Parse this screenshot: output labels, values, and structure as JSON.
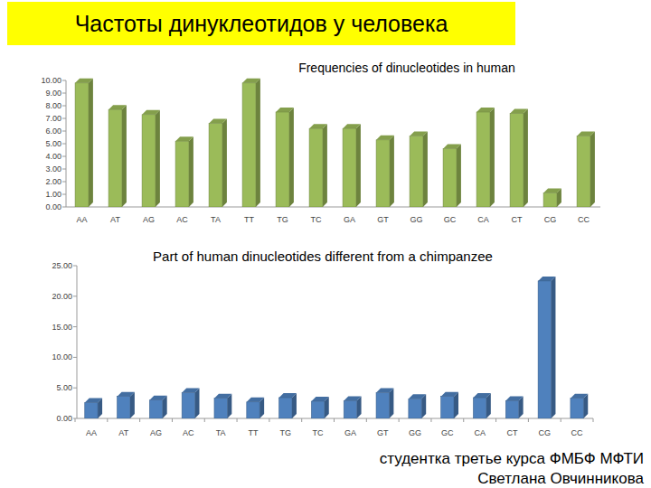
{
  "slide": {
    "title": "Частоты динуклеотидов у человека",
    "footer": [
      "студентка третье курса ФМБФ МФТИ",
      "Светлана Овчинникова"
    ]
  },
  "chart_data": [
    {
      "type": "bar",
      "title": "Frequencies of dinucleotides in human",
      "categories": [
        "AA",
        "AT",
        "AG",
        "AC",
        "TA",
        "TT",
        "TG",
        "TC",
        "GA",
        "GT",
        "GG",
        "GC",
        "CA",
        "CT",
        "CG",
        "CC"
      ],
      "values": [
        9.8,
        7.7,
        7.3,
        5.2,
        6.6,
        9.8,
        7.5,
        6.2,
        6.2,
        5.3,
        5.6,
        4.6,
        7.5,
        7.4,
        1.1,
        5.6
      ],
      "color": "#9bbb59",
      "ylim": [
        0,
        10
      ],
      "yticks": [
        {
          "value": 0,
          "label": "0.00"
        },
        {
          "value": 1,
          "label": "1.00"
        },
        {
          "value": 2,
          "label": "2.00"
        },
        {
          "value": 3,
          "label": "3.00"
        },
        {
          "value": 4,
          "label": "4.00"
        },
        {
          "value": 5,
          "label": "5.00"
        },
        {
          "value": 6,
          "label": "6.00"
        },
        {
          "value": 7,
          "label": "7.00"
        },
        {
          "value": 8,
          "label": "8.00"
        },
        {
          "value": 9,
          "label": "9.00"
        },
        {
          "value": 10,
          "label": "10.00"
        }
      ],
      "grid": false
    },
    {
      "type": "bar",
      "title": "Part of human dinucleotides different from a chimpanzee",
      "categories": [
        "AA",
        "AT",
        "AG",
        "AC",
        "TA",
        "TT",
        "TG",
        "TC",
        "GA",
        "GT",
        "GG",
        "GC",
        "CA",
        "CT",
        "CG",
        "CC"
      ],
      "values": [
        2.6,
        3.6,
        3.0,
        4.2,
        3.3,
        2.7,
        3.4,
        2.8,
        2.9,
        4.2,
        3.2,
        3.6,
        3.4,
        2.9,
        22.5,
        3.3
      ],
      "color": "#4f81bd",
      "ylim": [
        0,
        25
      ],
      "yticks": [
        {
          "value": 0,
          "label": "0.00"
        },
        {
          "value": 5,
          "label": "5.00"
        },
        {
          "value": 10,
          "label": "10.00"
        },
        {
          "value": 15,
          "label": "15.00"
        },
        {
          "value": 20,
          "label": "20.00"
        },
        {
          "value": 25,
          "label": "25.00"
        }
      ],
      "grid": false
    }
  ]
}
